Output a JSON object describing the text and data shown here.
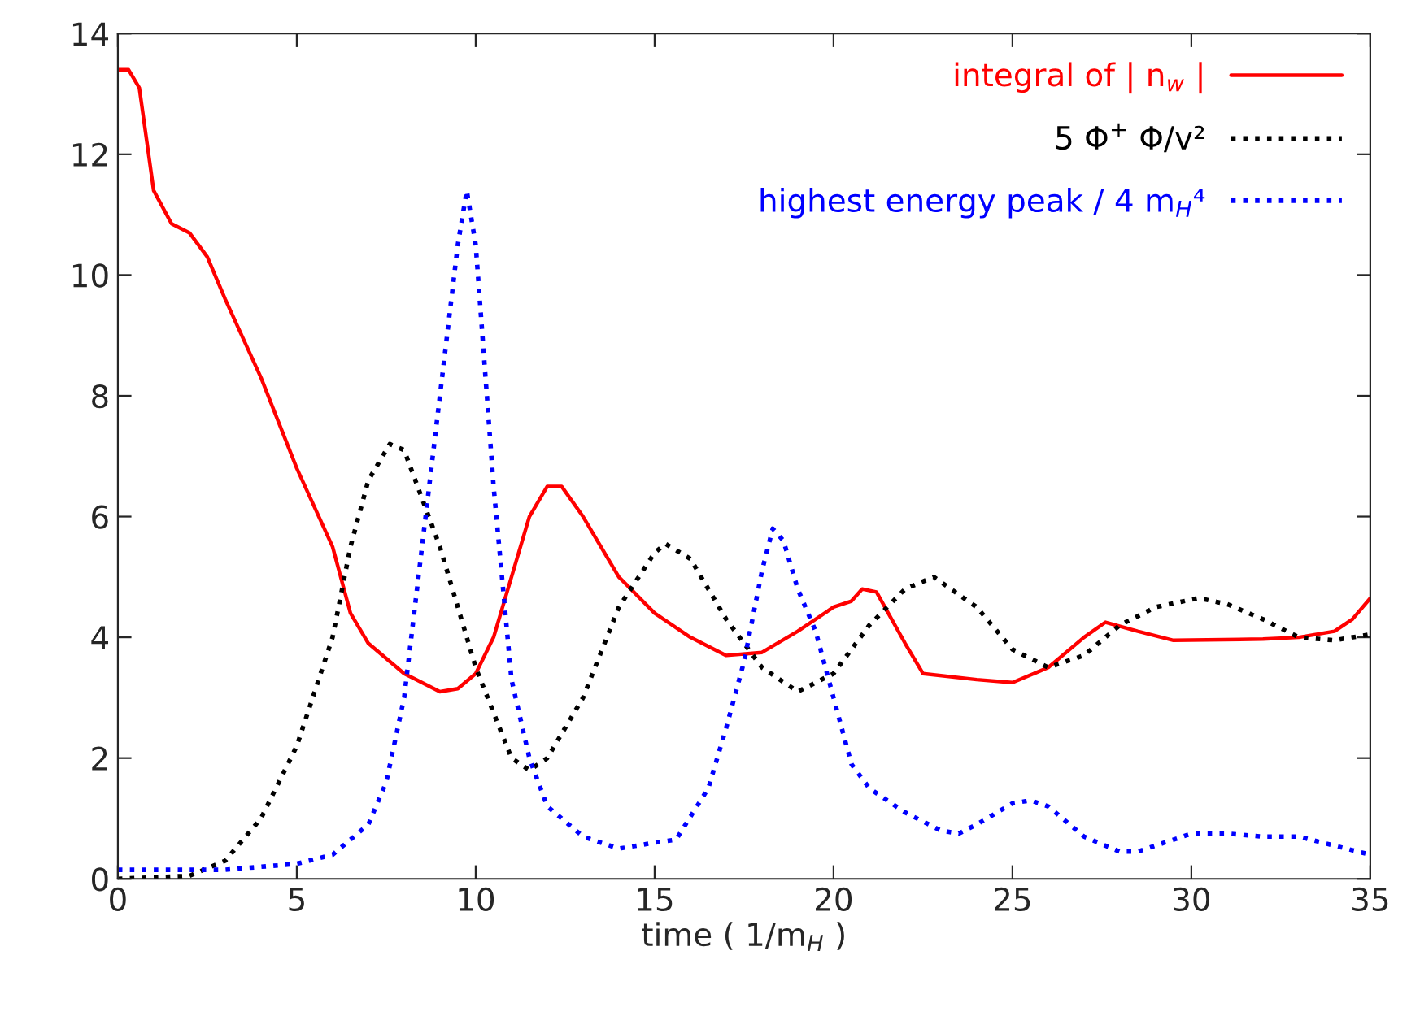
{
  "chart_data": {
    "type": "line",
    "xlabel": "time ( 1/m$_{H}$ )",
    "xlim": [
      0,
      35
    ],
    "xticks": [
      0,
      5,
      10,
      15,
      20,
      25,
      30,
      35
    ],
    "ylim": [
      0,
      14
    ],
    "yticks": [
      0,
      2,
      4,
      6,
      8,
      10,
      12,
      14
    ],
    "grid": false,
    "legend": "top right",
    "marker": "none",
    "series": [
      {
        "name": "integral of | n$_{w}$ |",
        "color": "#ff0000",
        "line_style": "solid",
        "x": [
          0,
          0.3,
          0.6,
          1,
          1.5,
          2,
          2.5,
          3,
          4,
          5,
          6,
          6.5,
          7,
          8,
          9,
          9.5,
          10,
          10.5,
          11,
          11.5,
          12,
          12.4,
          13,
          14,
          15,
          16,
          17,
          18,
          19,
          20,
          20.5,
          20.8,
          21.2,
          22,
          22.5,
          24,
          25,
          26,
          27,
          27.6,
          28.5,
          29.5,
          32,
          33,
          34,
          34.5,
          35
        ],
        "values": [
          13.4,
          13.4,
          13.1,
          11.4,
          10.85,
          10.7,
          10.3,
          9.6,
          8.3,
          6.8,
          5.5,
          4.4,
          3.9,
          3.4,
          3.1,
          3.15,
          3.4,
          4.0,
          5.0,
          6.0,
          6.5,
          6.5,
          6.0,
          5.0,
          4.4,
          4.0,
          3.7,
          3.75,
          4.1,
          4.5,
          4.6,
          4.8,
          4.75,
          3.9,
          3.4,
          3.3,
          3.25,
          3.5,
          4.0,
          4.25,
          4.1,
          3.95,
          3.97,
          4.0,
          4.1,
          4.3,
          4.65
        ]
      },
      {
        "name": "5 Φ$^{+}$ Φ/v²",
        "color": "#000000",
        "line_style": "dotted",
        "x": [
          0,
          2,
          3,
          4,
          5,
          6,
          6.5,
          7,
          7.6,
          8,
          9,
          10,
          11,
          11.5,
          12,
          13,
          14,
          15,
          15.3,
          16,
          17,
          18,
          19,
          20,
          21,
          22,
          22.8,
          24,
          25,
          26,
          27,
          28,
          29,
          30.2,
          31,
          32,
          33,
          34,
          35
        ],
        "values": [
          0,
          0.05,
          0.3,
          1.0,
          2.2,
          4.0,
          5.5,
          6.6,
          7.2,
          7.1,
          5.5,
          3.5,
          2.0,
          1.8,
          2.0,
          3.0,
          4.5,
          5.4,
          5.55,
          5.3,
          4.3,
          3.5,
          3.1,
          3.4,
          4.2,
          4.8,
          5.0,
          4.5,
          3.8,
          3.5,
          3.7,
          4.2,
          4.5,
          4.65,
          4.55,
          4.3,
          4.0,
          3.95,
          4.05
        ]
      },
      {
        "name": "highest energy peak / 4 m$_{H}$⁴",
        "color": "#0000ff",
        "line_style": "dotted",
        "x": [
          0,
          3,
          5,
          6,
          7,
          7.5,
          8,
          8.5,
          9,
          9.5,
          9.75,
          10,
          10.5,
          11,
          11.5,
          12,
          13,
          14,
          15,
          15.6,
          16.5,
          17,
          17.5,
          18,
          18.3,
          18.6,
          19,
          19.5,
          20,
          20.5,
          21,
          22,
          23,
          23.5,
          24,
          25,
          25.5,
          26,
          27,
          28,
          28.5,
          29,
          30,
          31,
          32,
          33,
          34,
          35
        ],
        "values": [
          0.15,
          0.15,
          0.25,
          0.4,
          0.9,
          1.6,
          3.0,
          5.5,
          8.0,
          10.5,
          11.4,
          10.5,
          6.5,
          3.3,
          2.0,
          1.2,
          0.7,
          0.5,
          0.6,
          0.65,
          1.5,
          2.5,
          3.6,
          5.1,
          5.8,
          5.6,
          4.8,
          4.1,
          3.0,
          1.9,
          1.5,
          1.1,
          0.8,
          0.75,
          0.9,
          1.25,
          1.3,
          1.2,
          0.7,
          0.45,
          0.45,
          0.55,
          0.75,
          0.75,
          0.7,
          0.7,
          0.55,
          0.4
        ]
      }
    ]
  }
}
